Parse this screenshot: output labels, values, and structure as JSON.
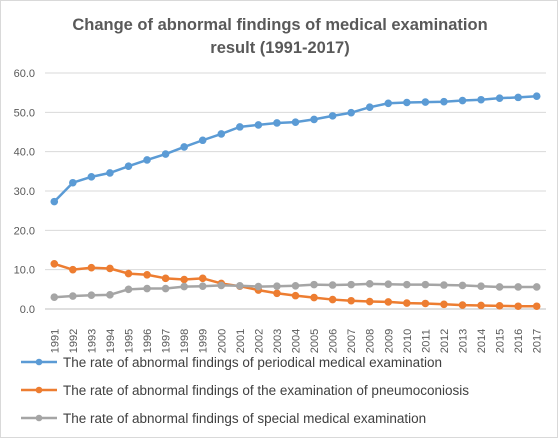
{
  "chart_data": {
    "type": "line",
    "title": [
      "Change of abnormal findings of medical examination",
      "result (1991-2017)"
    ],
    "xlabel": "",
    "ylabel": "",
    "ylim": [
      0,
      60
    ],
    "yticks": [
      "0.0",
      "10.0",
      "20.0",
      "30.0",
      "40.0",
      "50.0",
      "60.0"
    ],
    "grid": true,
    "legend_position": "bottom",
    "x": [
      "1991",
      "1992",
      "1993",
      "1994",
      "1995",
      "1996",
      "1997",
      "1998",
      "1999",
      "2000",
      "2001",
      "2002",
      "2003",
      "2004",
      "2005",
      "2006",
      "2007",
      "2008",
      "2009",
      "2010",
      "2011",
      "2012",
      "2013",
      "2014",
      "2015",
      "2016",
      "2017"
    ],
    "series": [
      {
        "name": "The rate of abnormal findings of periodical medical examination",
        "color": "#5B9BD5",
        "values": [
          27.3,
          32.1,
          33.6,
          34.6,
          36.3,
          37.9,
          39.4,
          41.2,
          42.9,
          44.5,
          46.3,
          46.8,
          47.3,
          47.5,
          48.2,
          49.1,
          49.9,
          51.3,
          52.3,
          52.5,
          52.6,
          52.7,
          53.0,
          53.2,
          53.6,
          53.8,
          54.1
        ]
      },
      {
        "name": "The rate of abnormal findings of the examination of pneumoconiosis",
        "color": "#ED7D31",
        "values": [
          11.5,
          10.0,
          10.5,
          10.3,
          9.0,
          8.7,
          7.8,
          7.5,
          7.8,
          6.5,
          5.8,
          4.8,
          4.0,
          3.4,
          2.9,
          2.4,
          2.1,
          1.9,
          1.8,
          1.5,
          1.4,
          1.2,
          1.0,
          0.9,
          0.8,
          0.7,
          0.7
        ]
      },
      {
        "name": "The rate of abnormal findings of special medical examination",
        "color": "#A5A5A5",
        "values": [
          3.0,
          3.3,
          3.5,
          3.6,
          5.0,
          5.2,
          5.2,
          5.7,
          5.8,
          6.0,
          5.9,
          5.7,
          5.8,
          5.9,
          6.2,
          6.1,
          6.2,
          6.4,
          6.3,
          6.2,
          6.2,
          6.1,
          6.0,
          5.8,
          5.6,
          5.6,
          5.6
        ]
      }
    ]
  }
}
